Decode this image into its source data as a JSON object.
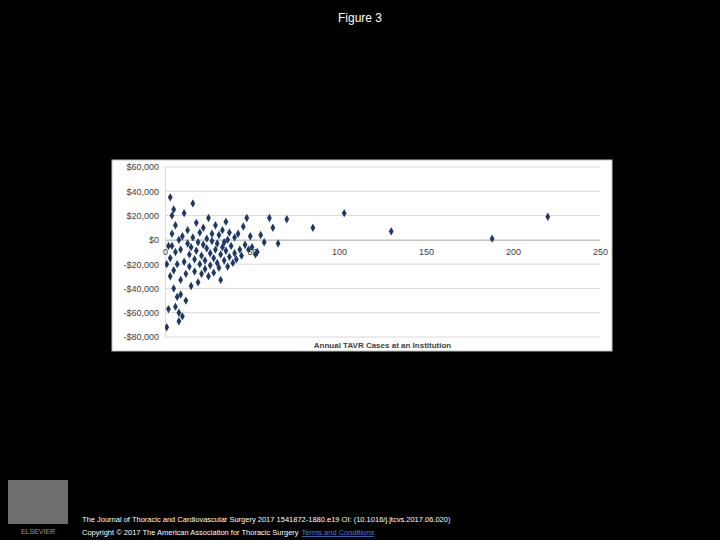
{
  "chart_data": {
    "type": "scatter",
    "title": "Figure 3",
    "xlabel": "Annual TAVR Cases at an Institution",
    "x": [
      1,
      2,
      3,
      3,
      4,
      4,
      5,
      5,
      6,
      6,
      7,
      7,
      8,
      8,
      9,
      9,
      10,
      10,
      11,
      11,
      12,
      12,
      13,
      13,
      14,
      14,
      15,
      15,
      16,
      16,
      17,
      17,
      18,
      18,
      19,
      19,
      20,
      20,
      21,
      21,
      22,
      22,
      23,
      23,
      24,
      24,
      25,
      25,
      26,
      26,
      27,
      27,
      28,
      28,
      29,
      29,
      30,
      30,
      31,
      31,
      32,
      32,
      33,
      33,
      34,
      34,
      35,
      35,
      36,
      36,
      37,
      37,
      38,
      39,
      40,
      40,
      41,
      42,
      43,
      44,
      45,
      46,
      47,
      48,
      49,
      50,
      52,
      53,
      55,
      57,
      60,
      62,
      65,
      70,
      85,
      103,
      130,
      188,
      220,
      3,
      5,
      4,
      2,
      1,
      6,
      8,
      9
    ],
    "values": [
      -72000,
      -57000,
      -30000,
      -15000,
      -5000,
      5000,
      -25000,
      -40000,
      -10000,
      12000,
      -20000,
      -47000,
      -60000,
      0,
      -33000,
      -8000,
      -63000,
      3000,
      -18000,
      22000,
      -50000,
      -28000,
      -3000,
      8000,
      -12000,
      -22000,
      -38000,
      -6000,
      2000,
      30000,
      -16000,
      -26000,
      -9000,
      14000,
      -35000,
      -2000,
      -20000,
      6000,
      -13000,
      -28000,
      -4000,
      10000,
      -24000,
      -17000,
      -7000,
      1000,
      -30000,
      18000,
      -11000,
      -21000,
      -1000,
      5000,
      -15000,
      -27000,
      -8000,
      12000,
      -19000,
      -3000,
      -23000,
      4000,
      -12000,
      -33000,
      -6000,
      8000,
      -17000,
      -2000,
      -9000,
      15000,
      -22000,
      0,
      -14000,
      6000,
      -5000,
      -19000,
      2000,
      -11000,
      -16000,
      5000,
      -8000,
      -13000,
      11000,
      -4000,
      18000,
      -8000,
      3000,
      -6000,
      -12000,
      -10000,
      4000,
      -2000,
      18000,
      10000,
      -3000,
      17000,
      10000,
      22000,
      7000,
      1000,
      19000,
      35000,
      25000,
      20000,
      -5000,
      -20000,
      -55000,
      -67000,
      -45000
    ],
    "color": "#1f3864",
    "marker": "diamond",
    "grid": true,
    "xlim": [
      0,
      250
    ],
    "xticks": [
      0,
      50,
      100,
      150,
      200,
      250
    ],
    "ylim": [
      -80000,
      60000
    ],
    "yticks": [
      {
        "value": -80000,
        "label": "-$80,000"
      },
      {
        "value": -60000,
        "label": "-$60,000"
      },
      {
        "value": -40000,
        "label": "-$40,000"
      },
      {
        "value": -20000,
        "label": "-$20,000"
      },
      {
        "value": 0,
        "label": "$0"
      },
      {
        "value": 20000,
        "label": "$20,000"
      },
      {
        "value": 40000,
        "label": "$40,000"
      },
      {
        "value": 60000,
        "label": "$60,000"
      }
    ],
    "annotations": [
      "The Journal of Thoracic and Cardiovascular Surgery 2017 1541872-1880.e19 OI: (10.1016/j.jtcvs.2017.06.020)",
      "Copyright © 2017 The American Association for Thoracic Surgery",
      "Terms and Conditions",
      "ELSEVIER"
    ]
  }
}
